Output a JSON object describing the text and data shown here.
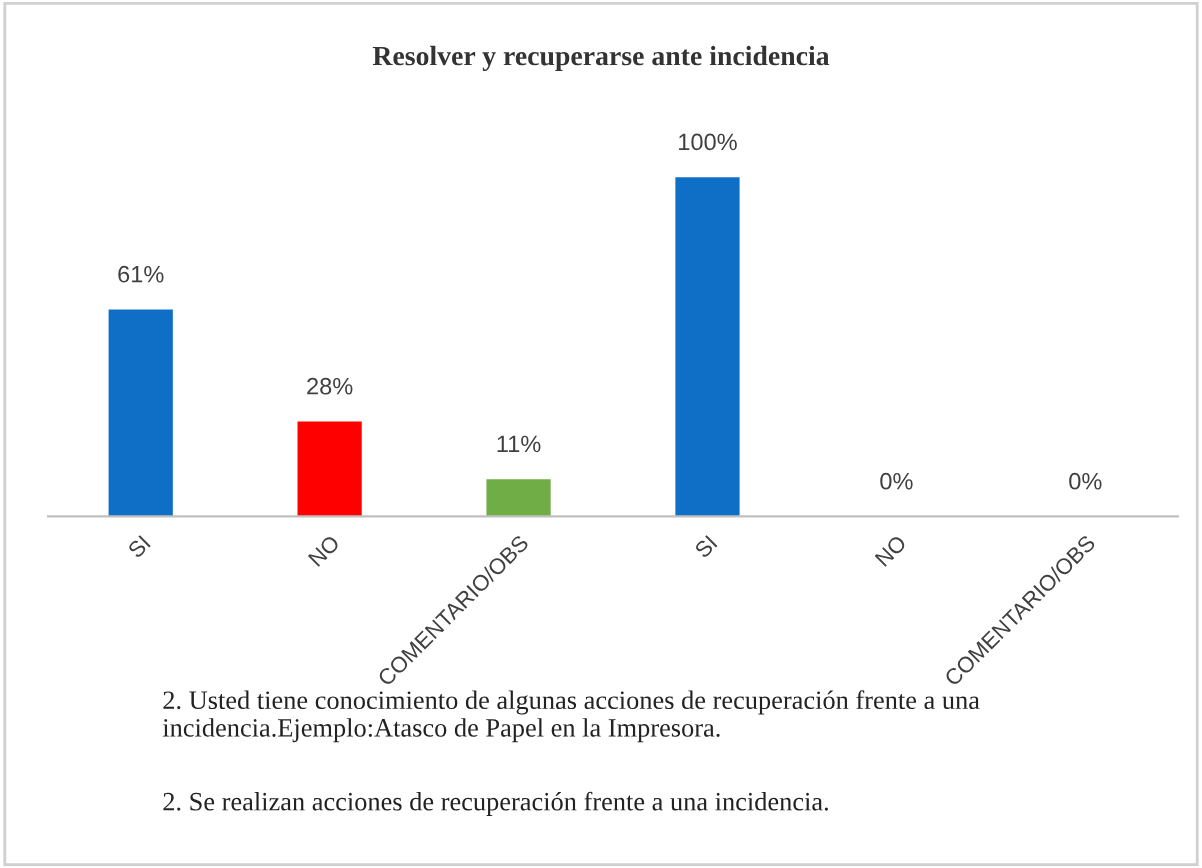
{
  "chart_data": {
    "type": "bar",
    "title": "Resolver y recuperarse ante incidencia",
    "categories": [
      "SI",
      "NO",
      "COMENTARIO/OBS",
      "SI",
      "NO",
      "COMENTARIO/OBS"
    ],
    "values": [
      61,
      28,
      11,
      100,
      0,
      0
    ],
    "colors": [
      "#0f6fc6",
      "#ff0000",
      "#70ad47",
      "#0f6fc6",
      "#0f6fc6",
      "#0f6fc6"
    ],
    "value_labels": [
      "61%",
      "28%",
      "11%",
      "100%",
      "0%",
      "0%"
    ],
    "annotations": [
      "2. Usted tiene conocimiento de algunas acciones de recuperación frente a una incidencia.Ejemplo:Atasco de Papel en la Impresora.",
      "2. Se realizan acciones de recuperación frente a una incidencia."
    ]
  }
}
